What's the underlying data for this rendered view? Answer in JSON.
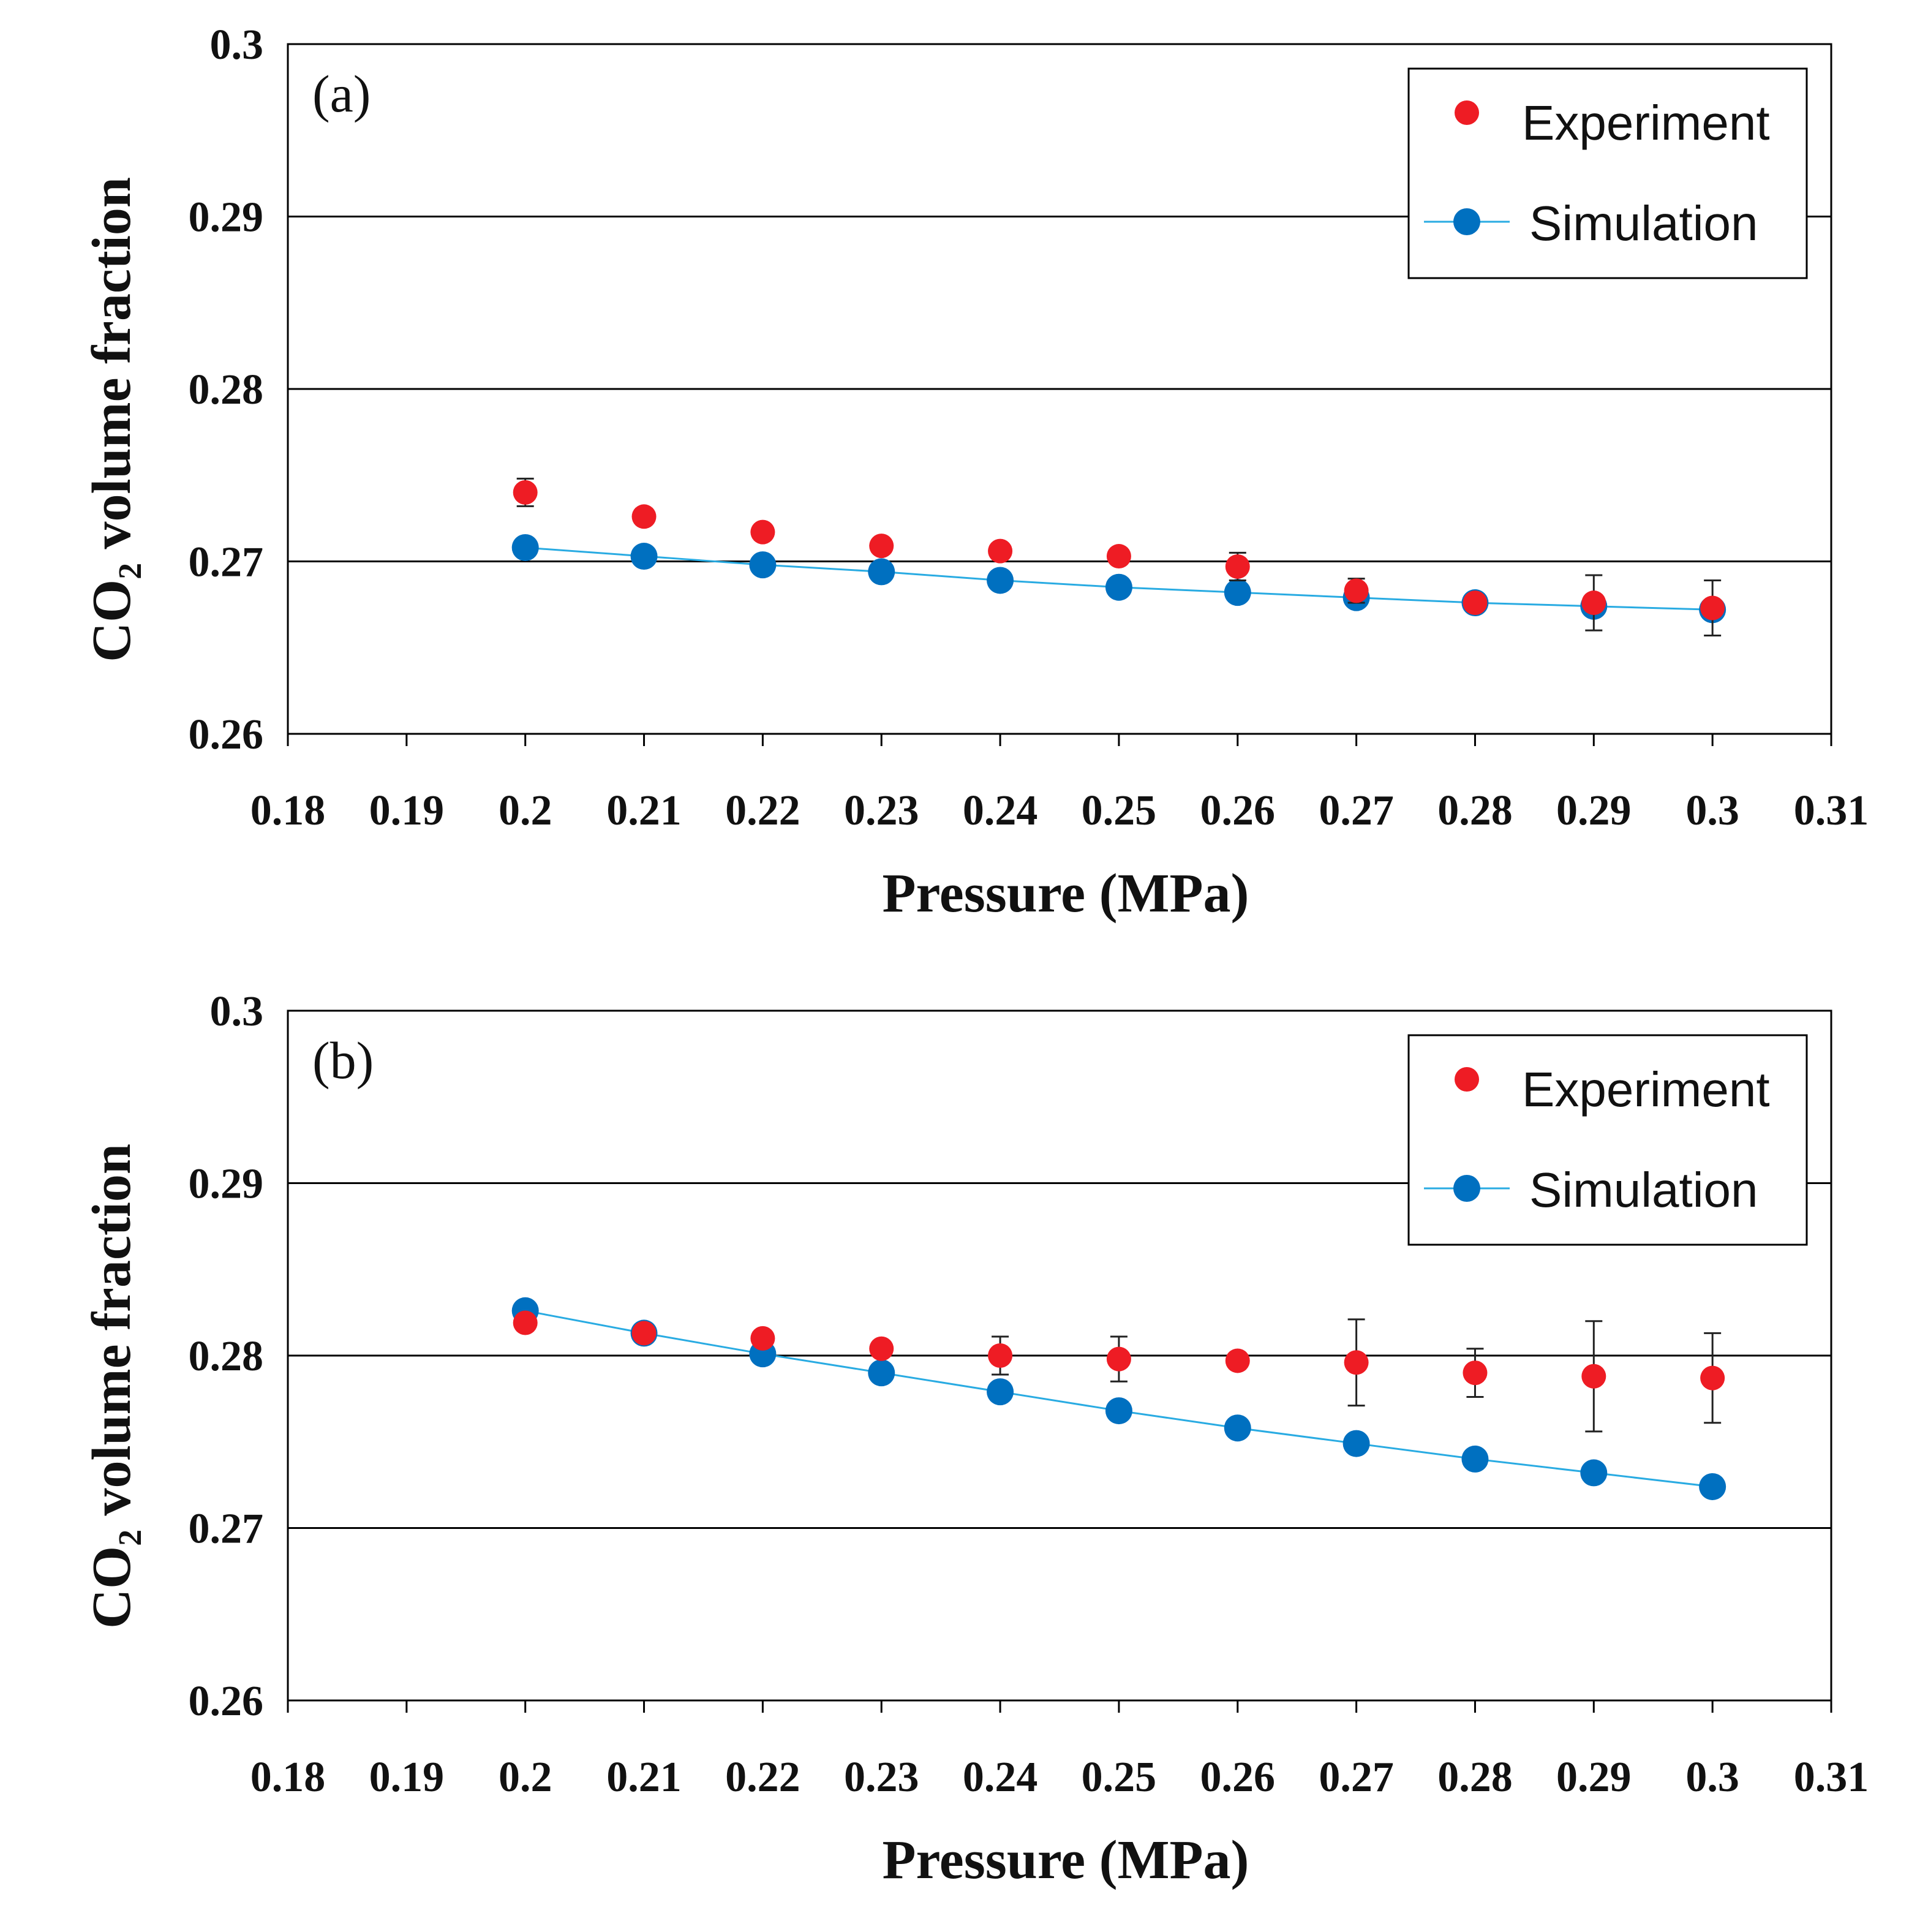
{
  "chart_data": [
    {
      "type": "scatter",
      "panel_label": "(a)",
      "xlabel": "Pressure (MPa)",
      "ylabel": "CO₂ volume fraction",
      "xlim": [
        0.18,
        0.31
      ],
      "ylim": [
        0.26,
        0.3
      ],
      "xticks": [
        "0.18",
        "0.19",
        "0.2",
        "0.21",
        "0.22",
        "0.23",
        "0.24",
        "0.25",
        "0.26",
        "0.27",
        "0.28",
        "0.29",
        "0.3",
        "0.31"
      ],
      "yticks": [
        "0.26",
        "0.27",
        "0.28",
        "0.29",
        "0.3"
      ],
      "grid": "horizontal",
      "legend_position": "top-right",
      "x": [
        0.2,
        0.21,
        0.22,
        0.23,
        0.24,
        0.25,
        0.26,
        0.27,
        0.28,
        0.29,
        0.3
      ],
      "series": [
        {
          "name": "Experiment",
          "style": "markers",
          "color": "#ee1c24",
          "values": [
            0.274,
            0.2726,
            0.2717,
            0.2709,
            0.2706,
            0.2703,
            0.2697,
            0.2683,
            0.2676,
            0.2676,
            0.2673
          ],
          "error": [
            0.0008,
            0.0003,
            0.0002,
            0.0003,
            0.0003,
            0.0003,
            0.0008,
            0.0007,
            0.0003,
            0.0016,
            0.0016
          ]
        },
        {
          "name": "Simulation",
          "style": "line+markers",
          "color": "#0070c0",
          "line_color": "#29abe2",
          "values": [
            0.2708,
            0.2703,
            0.2698,
            0.2694,
            0.2689,
            0.2685,
            0.2682,
            0.2679,
            0.2676,
            0.2674,
            0.2672
          ]
        }
      ]
    },
    {
      "type": "scatter",
      "panel_label": "(b)",
      "xlabel": "Pressure (MPa)",
      "ylabel": "CO₂ volume fraction",
      "xlim": [
        0.18,
        0.31
      ],
      "ylim": [
        0.26,
        0.3
      ],
      "xticks": [
        "0.18",
        "0.19",
        "0.2",
        "0.21",
        "0.22",
        "0.23",
        "0.24",
        "0.25",
        "0.26",
        "0.27",
        "0.28",
        "0.29",
        "0.3",
        "0.31"
      ],
      "yticks": [
        "0.26",
        "0.27",
        "0.28",
        "0.29",
        "0.3"
      ],
      "grid": "horizontal",
      "legend_position": "top-right",
      "x": [
        0.2,
        0.21,
        0.22,
        0.23,
        0.24,
        0.25,
        0.26,
        0.27,
        0.28,
        0.29,
        0.3
      ],
      "series": [
        {
          "name": "Experiment",
          "style": "markers",
          "color": "#ee1c24",
          "values": [
            0.2819,
            0.2813,
            0.281,
            0.2804,
            0.28,
            0.2798,
            0.2797,
            0.2796,
            0.279,
            0.2788,
            0.2787
          ],
          "error": [
            0.0002,
            0.0002,
            0.0003,
            0.0003,
            0.0011,
            0.0013,
            0.0004,
            0.0025,
            0.0014,
            0.0032,
            0.0026
          ]
        },
        {
          "name": "Simulation",
          "style": "line+markers",
          "color": "#0070c0",
          "line_color": "#29abe2",
          "values": [
            0.2826,
            0.2813,
            0.2801,
            0.279,
            0.2779,
            0.2768,
            0.2758,
            0.2749,
            0.274,
            0.2732,
            0.2724
          ]
        }
      ]
    }
  ]
}
